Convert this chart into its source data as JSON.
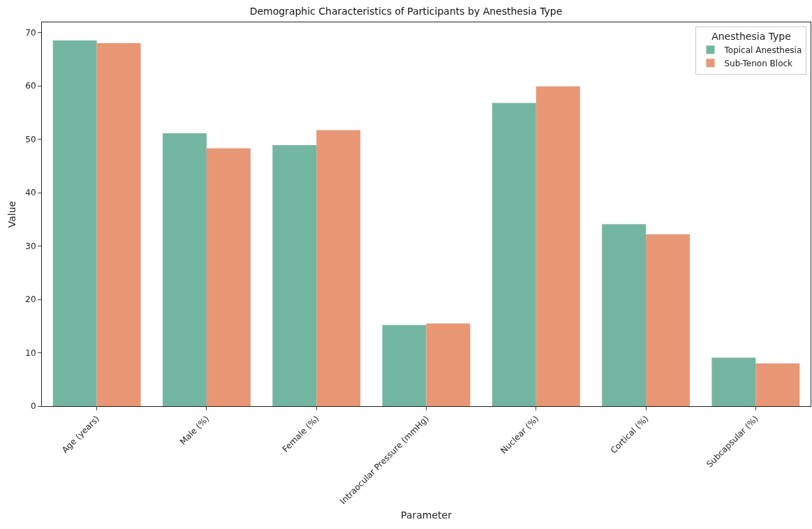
{
  "chart_data": {
    "type": "bar",
    "title": "Demographic Characteristics of Participants by Anesthesia Type",
    "xlabel": "Parameter",
    "ylabel": "Value",
    "legend_title": "Anesthesia Type",
    "categories": [
      "Age (years)",
      "Male (%)",
      "Female (%)",
      "Intraocular Pressure (mmHg)",
      "Nuclear (%)",
      "Cortical (%)",
      "Subcapsular (%)"
    ],
    "series": [
      {
        "name": "Topical Anesthesia",
        "color": "#72b6a1",
        "values": [
          68.5,
          51.1,
          48.9,
          15.2,
          56.8,
          34.1,
          9.1
        ]
      },
      {
        "name": "Sub-Tenon Block",
        "color": "#e99675",
        "values": [
          68.0,
          48.3,
          51.7,
          15.5,
          59.9,
          32.2,
          8.0
        ]
      }
    ],
    "ylim": [
      0,
      71.9
    ],
    "yticks": [
      0,
      10,
      20,
      30,
      40,
      50,
      60,
      70
    ],
    "grid": false,
    "legend": "top right"
  }
}
